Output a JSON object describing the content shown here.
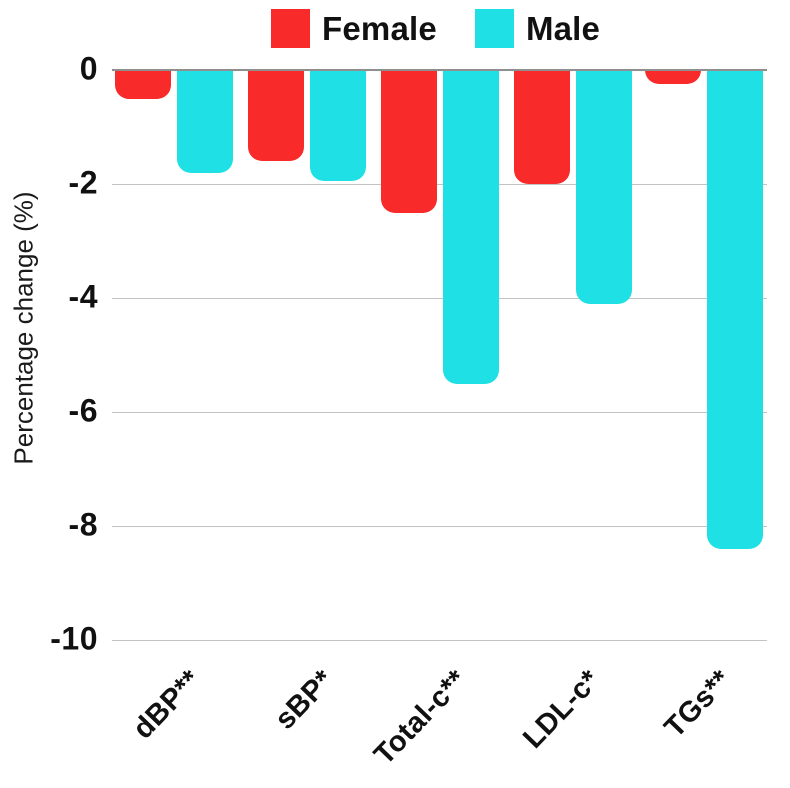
{
  "chart_data": {
    "type": "bar",
    "title": "",
    "categories": [
      "dBP**",
      "sBP*",
      "Total-c**",
      "LDL-c*",
      "TGs**"
    ],
    "series": [
      {
        "name": "Female",
        "color": "#f92a2a",
        "values": [
          -0.5,
          -1.6,
          -2.5,
          -2.0,
          -0.25
        ]
      },
      {
        "name": "Male",
        "color": "#1fe0e5",
        "values": [
          -1.8,
          -1.95,
          -5.5,
          -4.1,
          -8.4
        ]
      }
    ],
    "xlabel": "",
    "ylabel": "Percentage change (%)",
    "ylim": [
      -10,
      0
    ],
    "yticks": [
      0,
      -2,
      -4,
      -6,
      -8,
      -10
    ],
    "ytick_labels": [
      "0",
      "-2",
      "-4",
      "-6",
      "-8",
      "-10"
    ],
    "grid": true,
    "legend_position": "top-center",
    "bar_style": "rounded-bottom"
  },
  "legend": {
    "items": [
      {
        "label": "Female",
        "color": "#f92a2a"
      },
      {
        "label": "Male",
        "color": "#1fe0e5"
      }
    ]
  },
  "colors": {
    "background": "#ffffff",
    "gridline": "#c3c3c3",
    "zero_line": "#8f8f8f",
    "text": "#111111"
  }
}
